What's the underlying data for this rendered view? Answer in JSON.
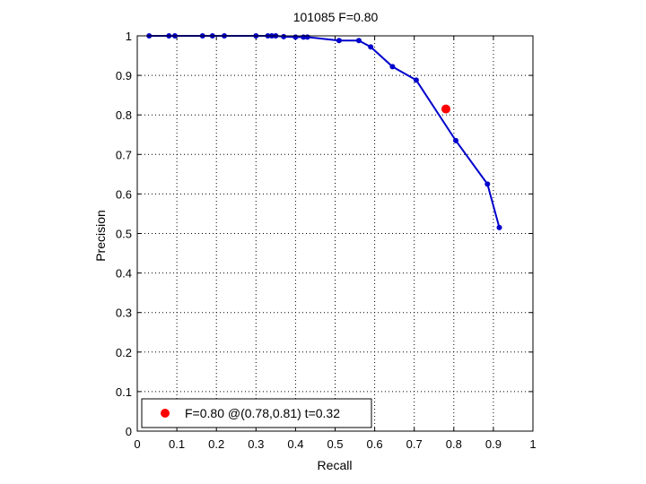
{
  "chart_data": {
    "type": "line",
    "title": "101085 F=0.80",
    "xlabel": "Recall",
    "ylabel": "Precision",
    "xlim": [
      0,
      1
    ],
    "ylim": [
      0,
      1
    ],
    "xticks": [
      "0",
      "0.1",
      "0.2",
      "0.3",
      "0.4",
      "0.5",
      "0.6",
      "0.7",
      "0.8",
      "0.9",
      "1"
    ],
    "yticks": [
      "0",
      "0.1",
      "0.2",
      "0.3",
      "0.4",
      "0.5",
      "0.6",
      "0.7",
      "0.8",
      "0.9",
      "1"
    ],
    "grid": true,
    "legend_position": "bottom-left",
    "series": [
      {
        "name": "",
        "color": "#0000cc",
        "points": [
          [
            0.03,
            1.0
          ],
          [
            0.08,
            1.0
          ],
          [
            0.095,
            1.0
          ],
          [
            0.165,
            1.0
          ],
          [
            0.19,
            1.0
          ],
          [
            0.22,
            1.0
          ],
          [
            0.3,
            1.0
          ],
          [
            0.33,
            1.0
          ],
          [
            0.34,
            1.0
          ],
          [
            0.35,
            1.0
          ],
          [
            0.37,
            0.998
          ],
          [
            0.4,
            0.997
          ],
          [
            0.42,
            0.997
          ],
          [
            0.43,
            0.997
          ],
          [
            0.51,
            0.988
          ],
          [
            0.56,
            0.988
          ],
          [
            0.59,
            0.972
          ],
          [
            0.645,
            0.922
          ],
          [
            0.705,
            0.888
          ],
          [
            0.805,
            0.735
          ],
          [
            0.885,
            0.625
          ],
          [
            0.915,
            0.515
          ]
        ]
      }
    ],
    "highlight": {
      "x": 0.78,
      "y": 0.815,
      "color": "#ff0000",
      "label": "F=0.80 @(0.78,0.81) t=0.32"
    }
  }
}
